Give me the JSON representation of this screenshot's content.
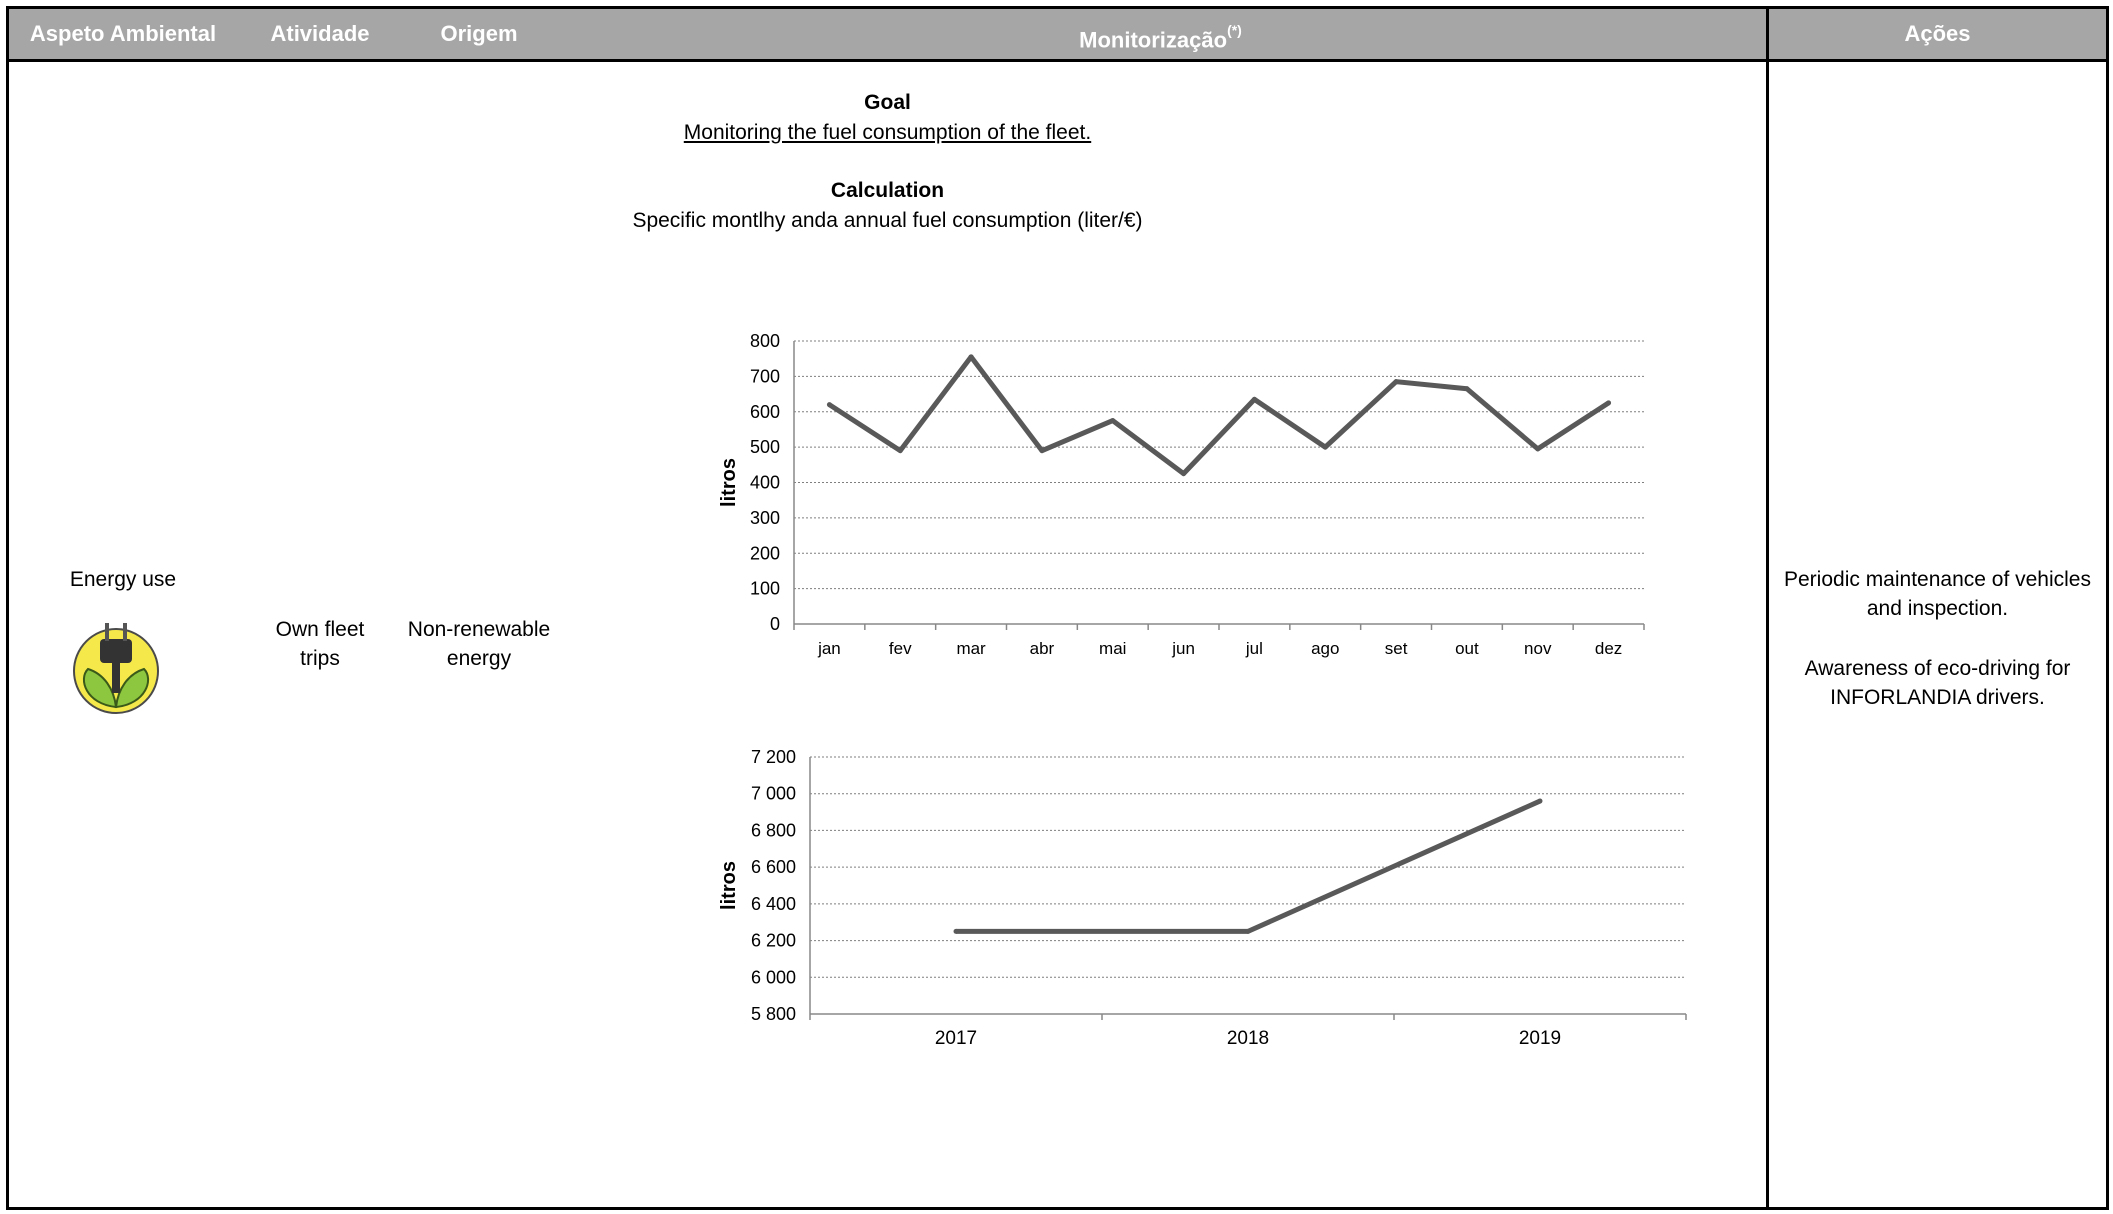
{
  "header": {
    "col_aspect": "Aspeto Ambiental",
    "col_activity": "Atividade",
    "col_origin": "Origem",
    "col_monitoring": "Monitorização",
    "col_monitoring_note": "(*)",
    "col_actions": "Ações"
  },
  "row": {
    "aspect": "Energy use",
    "icon": "plug-leaf-icon",
    "activity": "Own fleet trips",
    "origin": "Non-renewable energy",
    "goal_title": "Goal",
    "goal_text": "Monitoring the fuel consumption of the fleet.",
    "calc_title": "Calculation",
    "calc_text": "Specific montlhy anda annual fuel consumption (liter/€)",
    "action_1": "Periodic maintenance of vehicles and inspection.",
    "action_2": "Awareness of eco-driving for INFORLANDIA drivers."
  },
  "colors": {
    "header_bg": "#a6a6a6",
    "line": "#595959",
    "grid": "#7f7f7f"
  },
  "chart_data": [
    {
      "type": "line",
      "categories": [
        "jan",
        "fev",
        "mar",
        "abr",
        "mai",
        "jun",
        "jul",
        "ago",
        "set",
        "out",
        "nov",
        "dez"
      ],
      "values": [
        620,
        490,
        755,
        490,
        575,
        425,
        635,
        500,
        685,
        665,
        495,
        625
      ],
      "ylabel": "litros",
      "ylim": [
        0,
        800
      ],
      "yticks": [
        "0",
        "100",
        "200",
        "300",
        "400",
        "500",
        "600",
        "700",
        "800"
      ],
      "grid": true
    },
    {
      "type": "line",
      "categories": [
        "2017",
        "2018",
        "2019"
      ],
      "values": [
        6250,
        6250,
        6960
      ],
      "ylabel": "litros",
      "ylim": [
        5800,
        7200
      ],
      "yticks": [
        "5 800",
        "6 000",
        "6 200",
        "6 400",
        "6 600",
        "6 800",
        "7 000",
        "7 200"
      ],
      "grid": true
    }
  ]
}
